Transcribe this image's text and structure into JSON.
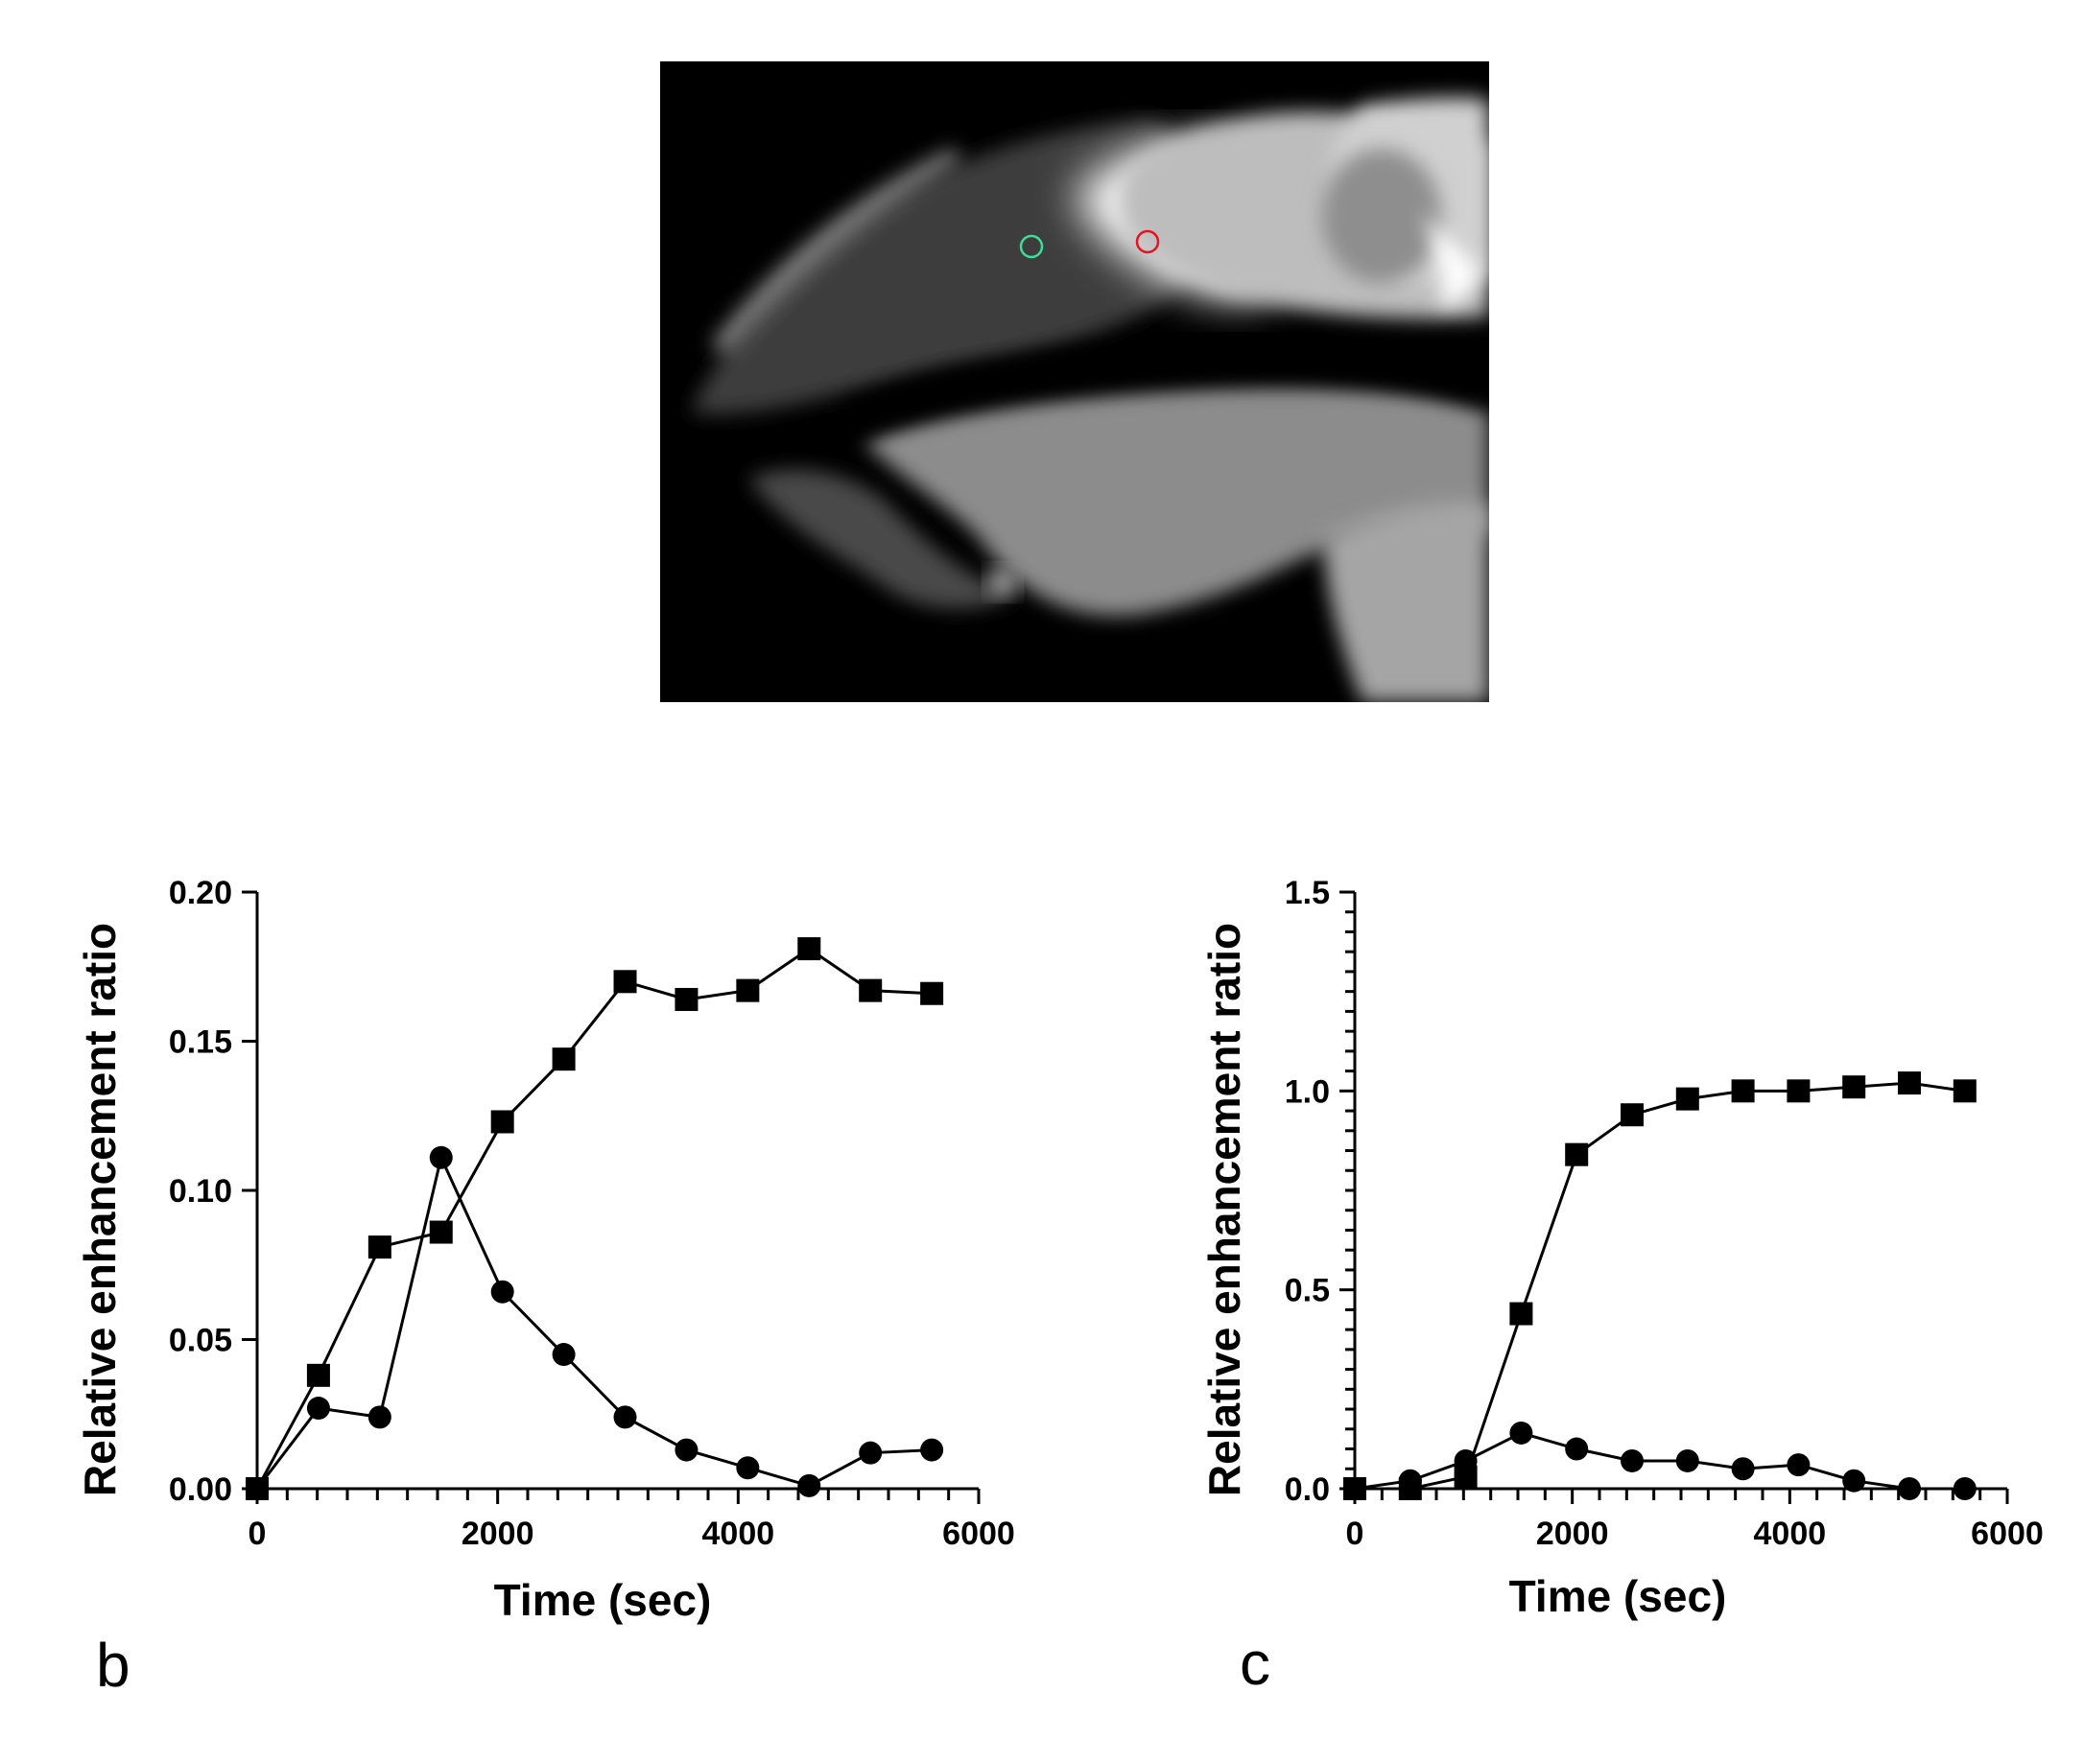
{
  "image": {
    "description_icon": "mri-sagittal-slice",
    "roi_colors": {
      "green": "#3ddc97",
      "red": "#e8121e"
    }
  },
  "panels": {
    "b": "b",
    "c": "c"
  },
  "chart_data": [
    {
      "type": "line",
      "xlabel": "Time (sec)",
      "ylabel": "Relative enhancement ratio",
      "xlim": [
        0,
        6000
      ],
      "ylim": [
        0,
        0.2
      ],
      "xticks": [
        "0",
        "2000",
        "4000",
        "6000"
      ],
      "yticks": [
        "0.00",
        "0.05",
        "0.10",
        "0.15",
        "0.20"
      ],
      "grid": false,
      "series": [
        {
          "marker": "square",
          "x": [
            0,
            510,
            1020,
            1530,
            2040,
            2550,
            3060,
            3570,
            4080,
            4590,
            5100,
            5610
          ],
          "y": [
            0.0,
            0.038,
            0.081,
            0.086,
            0.123,
            0.144,
            0.17,
            0.164,
            0.167,
            0.181,
            0.167,
            0.166
          ]
        },
        {
          "marker": "circle",
          "x": [
            0,
            510,
            1020,
            1530,
            2040,
            2550,
            3060,
            3570,
            4080,
            4590,
            5100,
            5610
          ],
          "y": [
            0.0,
            0.027,
            0.024,
            0.111,
            0.066,
            0.045,
            0.024,
            0.013,
            0.007,
            0.001,
            0.012,
            0.013
          ]
        }
      ]
    },
    {
      "type": "line",
      "xlabel": "Time (sec)",
      "ylabel": "Relative enhancement ratio",
      "xlim": [
        0,
        6000
      ],
      "ylim": [
        0,
        1.5
      ],
      "xticks": [
        "0",
        "2000",
        "4000",
        "6000"
      ],
      "yticks": [
        "0.0",
        "0.5",
        "1.0",
        "1.5"
      ],
      "grid": false,
      "series": [
        {
          "marker": "square",
          "x": [
            0,
            510,
            1020,
            1530,
            2040,
            2550,
            3060,
            3570,
            4080,
            4590,
            5100,
            5610
          ],
          "y": [
            0.0,
            0.0,
            0.03,
            0.44,
            0.84,
            0.94,
            0.98,
            1.0,
            1.0,
            1.01,
            1.02,
            1.0
          ]
        },
        {
          "marker": "circle",
          "x": [
            0,
            510,
            1020,
            1530,
            2040,
            2550,
            3060,
            3570,
            4080,
            4590,
            5100,
            5610
          ],
          "y": [
            0.0,
            0.02,
            0.07,
            0.14,
            0.1,
            0.07,
            0.07,
            0.05,
            0.06,
            0.02,
            0.0,
            0.0
          ]
        }
      ]
    }
  ]
}
